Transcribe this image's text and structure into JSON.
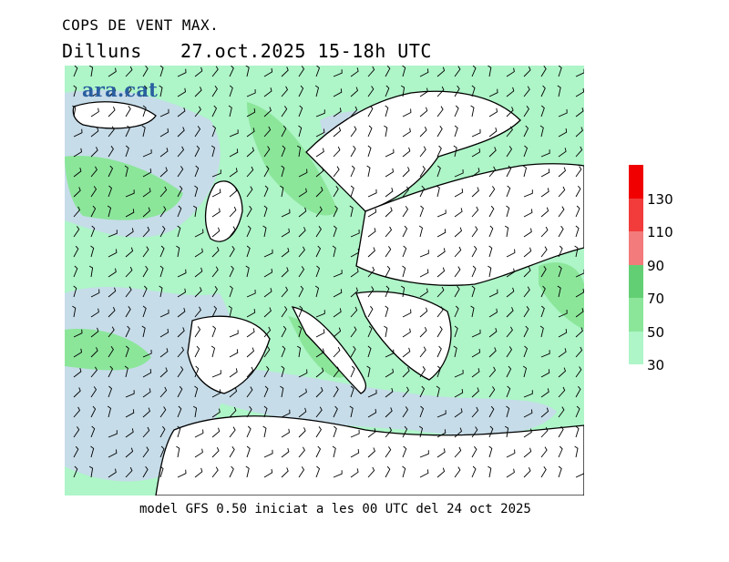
{
  "header": {
    "title": "COPS DE VENT MAX.",
    "day": "Dilluns",
    "date": "27.oct.2025  15-18h UTC"
  },
  "logo": {
    "text": "ara.cat"
  },
  "footer": {
    "text": "model GFS 0.50 iniciat a les 00 UTC del 24 oct 2025"
  },
  "legend": {
    "thresholds": [
      "30",
      "50",
      "70",
      "90",
      "110",
      "130"
    ],
    "colors": [
      "#aef5c8",
      "#8be69a",
      "#63cf74",
      "#f37b7b",
      "#f23b3b",
      "#f00000"
    ]
  },
  "map": {
    "colors": {
      "land": "#ffffff",
      "sea": "#c6dce9",
      "wind_30_50": "#aef5c8",
      "wind_50_70": "#8be69a",
      "coast": "#000000",
      "barb": "#000000"
    }
  }
}
